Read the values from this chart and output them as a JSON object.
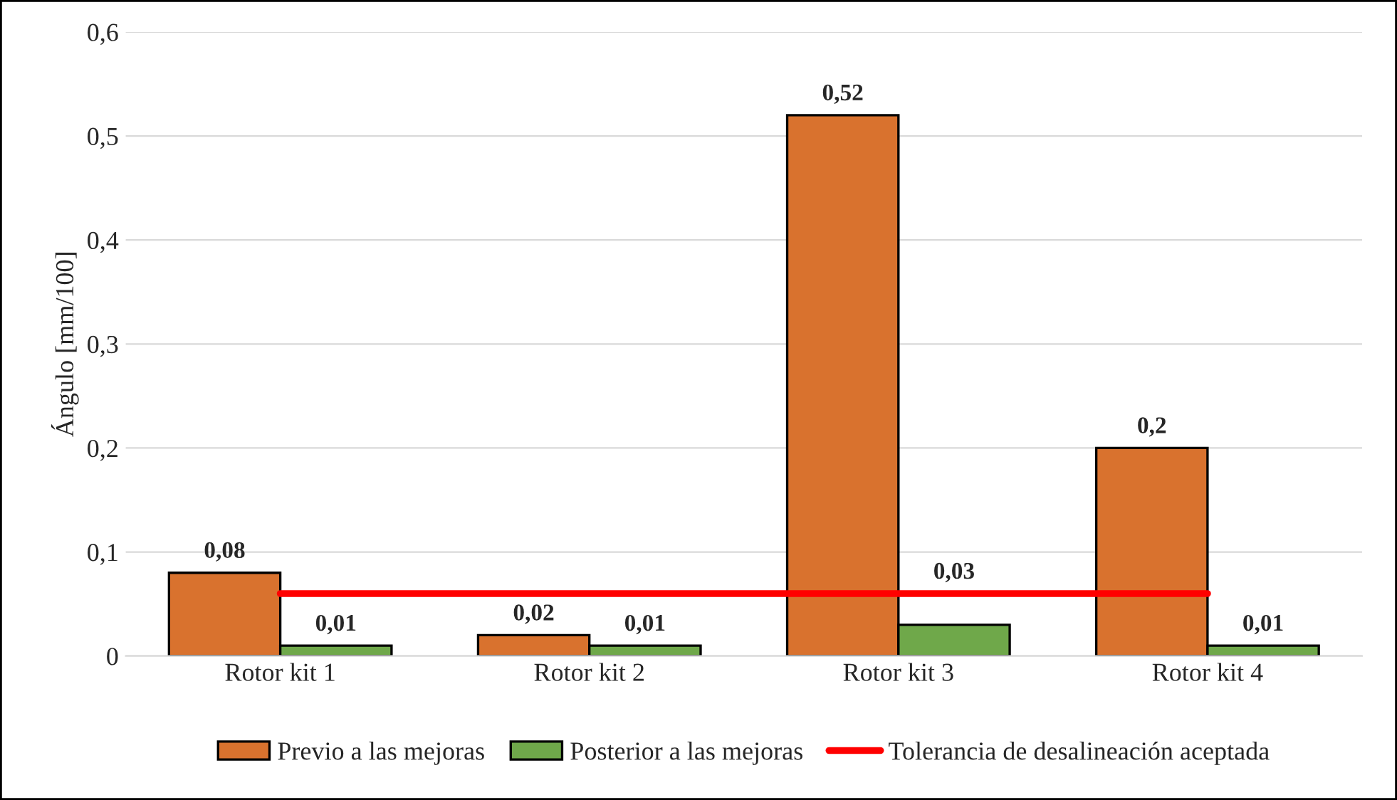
{
  "chart_data": {
    "type": "bar",
    "ylabel": "Ángulo [mm/100]",
    "categories": [
      "Rotor kit 1",
      "Rotor kit 2",
      "Rotor kit 3",
      "Rotor kit 4"
    ],
    "series": [
      {
        "name": "Previo a las mejoras",
        "color": "#d9722e",
        "values": [
          0.08,
          0.02,
          0.52,
          0.2
        ],
        "value_labels": [
          "0,08",
          "0,02",
          "0,52",
          "0,2"
        ]
      },
      {
        "name": "Posterior a las mejoras",
        "color": "#6fa84a",
        "values": [
          0.01,
          0.01,
          0.03,
          0.01
        ],
        "value_labels": [
          "0,01",
          "0,01",
          "0,03",
          "0,01"
        ]
      },
      {
        "name": "Tolerancia de desalineación aceptada",
        "type": "line",
        "color": "#ff0000",
        "values": [
          0.06,
          0.06,
          0.06,
          0.06
        ]
      }
    ],
    "ylim": [
      0,
      0.6
    ],
    "yticks": [
      0,
      {
        "value": 0.1,
        "label": "0,1"
      },
      {
        "value": 0.2,
        "label": "0,2"
      },
      {
        "value": 0.3,
        "label": "0,3"
      },
      {
        "value": 0.4,
        "label": "0,4"
      },
      {
        "value": 0.5,
        "label": "0,5"
      },
      {
        "value": 0.6,
        "label": "0,6"
      }
    ],
    "grid": "y",
    "legend": "bottom"
  }
}
